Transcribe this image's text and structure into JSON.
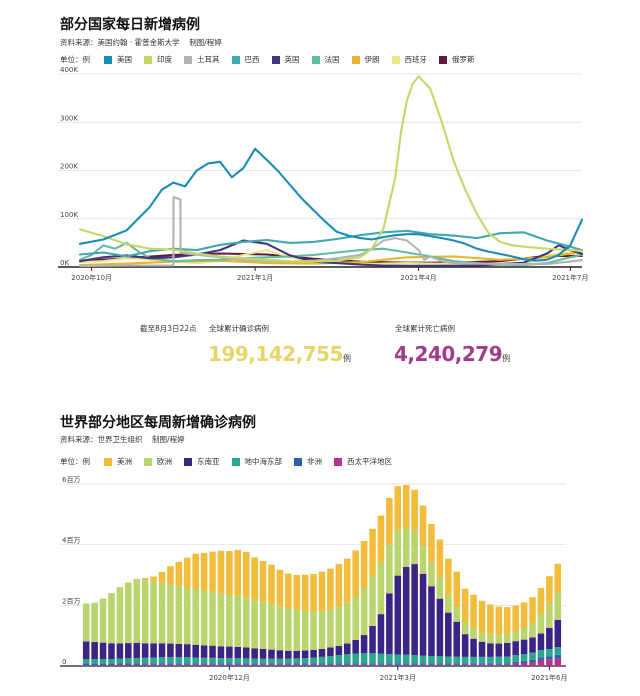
{
  "chart1": {
    "title": "部分国家每日新增病例",
    "source": "资料来源：美国约翰 · 霍普金斯大学",
    "credit": "制图/程婷",
    "legend_unit": "单位：例",
    "stats": {
      "cutoff": "截至8月3日22点",
      "cases_label": "全球累计确诊病例",
      "cases_value": "199,142,755",
      "deaths_label": "全球累计死亡病例",
      "deaths_value": "4,240,279",
      "unit": "例"
    }
  },
  "chart2": {
    "title": "世界部分地区每周新增确诊病例",
    "source": "资料来源：世界卫生组织",
    "credit": "制图/程婷",
    "legend_unit": "单位：例"
  },
  "chart_data": [
    {
      "type": "line",
      "title": "部分国家每日新增病例",
      "ylabel": "例",
      "ylim": [
        0,
        400000
      ],
      "yticks": [
        0,
        100000,
        200000,
        300000,
        400000
      ],
      "ytick_labels": [
        "0K",
        "100K",
        "200K",
        "300K",
        "400K"
      ],
      "xlim": [
        0,
        43
      ],
      "xticks": [
        1,
        15,
        29,
        42
      ],
      "xtick_labels": [
        "2020年10月",
        "2021年1月",
        "2021年4月",
        "2021年7月"
      ],
      "series": [
        {
          "name": "美国",
          "color": "#1a8cb5",
          "x": [
            0,
            2,
            4,
            6,
            7,
            8,
            9,
            10,
            11,
            12,
            13,
            14,
            15,
            16,
            17,
            18,
            19,
            20,
            21,
            22,
            23,
            24,
            25,
            26,
            27,
            28,
            29,
            30,
            31,
            32,
            33,
            34,
            35,
            36,
            37,
            38,
            39,
            40,
            41,
            42,
            43
          ],
          "values": [
            48000,
            57000,
            76000,
            125000,
            160000,
            175000,
            167000,
            200000,
            215000,
            218000,
            186000,
            205000,
            245000,
            222000,
            198000,
            170000,
            142000,
            118000,
            94000,
            73000,
            65000,
            60000,
            57000,
            62000,
            66000,
            68000,
            68000,
            64000,
            60000,
            55000,
            48000,
            38000,
            32000,
            27000,
            22000,
            16000,
            13000,
            15000,
            25000,
            45000,
            98000
          ]
        },
        {
          "name": "印度",
          "color": "#c3d86b",
          "x": [
            0,
            2,
            4,
            6,
            8,
            10,
            12,
            14,
            16,
            18,
            20,
            22,
            24,
            25,
            26,
            27,
            27.5,
            28,
            28.5,
            29,
            30,
            31,
            32,
            33,
            34,
            35,
            36,
            37,
            38,
            39,
            40,
            42,
            43
          ],
          "values": [
            78000,
            64000,
            47000,
            38000,
            36000,
            28000,
            22000,
            18000,
            15000,
            12000,
            11000,
            13000,
            20000,
            38000,
            80000,
            185000,
            280000,
            345000,
            380000,
            395000,
            370000,
            300000,
            220000,
            160000,
            110000,
            70000,
            52000,
            45000,
            42000,
            40000,
            38000,
            35000,
            33000
          ]
        },
        {
          "name": "土耳其",
          "color": "#b3b3b3",
          "x": [
            0,
            4,
            7,
            8,
            8.01,
            8.6,
            8.61,
            9,
            12,
            14,
            18,
            20,
            22,
            24,
            25,
            26,
            27,
            28,
            29,
            29.5,
            30,
            31,
            32,
            36,
            40,
            43
          ],
          "values": [
            2000,
            3000,
            3000,
            3000,
            145000,
            140000,
            30000,
            28000,
            20000,
            14000,
            11000,
            13000,
            18000,
            25000,
            38000,
            55000,
            60000,
            55000,
            35000,
            15000,
            22000,
            12000,
            8000,
            6000,
            6000,
            14000
          ]
        },
        {
          "name": "巴西",
          "color": "#41a8b2",
          "x": [
            0,
            2,
            4,
            6,
            8,
            10,
            12,
            14,
            16,
            18,
            20,
            22,
            24,
            26,
            28,
            30,
            32,
            34,
            36,
            38,
            40,
            42,
            43
          ],
          "values": [
            26000,
            30000,
            22000,
            33000,
            38000,
            35000,
            46000,
            52000,
            56000,
            50000,
            52000,
            58000,
            66000,
            72000,
            75000,
            68000,
            65000,
            60000,
            70000,
            72000,
            55000,
            42000,
            35000
          ]
        },
        {
          "name": "英国",
          "color": "#42377e",
          "x": [
            0,
            2,
            4,
            6,
            8,
            10,
            12,
            14,
            16,
            18,
            20,
            22,
            24,
            26,
            28,
            30,
            32,
            34,
            36,
            38,
            40,
            41,
            42,
            43
          ],
          "values": [
            12000,
            20000,
            24000,
            18000,
            20000,
            26000,
            35000,
            55000,
            48000,
            24000,
            11000,
            8000,
            5000,
            3000,
            2500,
            2500,
            2500,
            3000,
            6000,
            9000,
            28000,
            45000,
            35000,
            27000
          ]
        },
        {
          "name": "法国",
          "color": "#63bc9e",
          "x": [
            0,
            1,
            2,
            3,
            4,
            5,
            6,
            8,
            10,
            12,
            14,
            16,
            18,
            20,
            22,
            24,
            26,
            28,
            30,
            32,
            34,
            36,
            38,
            40,
            42,
            43
          ],
          "values": [
            15000,
            25000,
            45000,
            38000,
            50000,
            32000,
            18000,
            12000,
            14000,
            15000,
            18000,
            20000,
            22000,
            25000,
            30000,
            35000,
            38000,
            30000,
            22000,
            12000,
            8000,
            5000,
            4000,
            8000,
            20000,
            25000
          ]
        },
        {
          "name": "伊朗",
          "color": "#e7b731",
          "x": [
            0,
            4,
            8,
            12,
            16,
            20,
            24,
            28,
            32,
            36,
            40,
            43
          ],
          "values": [
            4000,
            7000,
            11000,
            13000,
            8000,
            7000,
            10000,
            20000,
            22000,
            15000,
            20000,
            32000
          ]
        },
        {
          "name": "西班牙",
          "color": "#ece78e",
          "x": [
            0,
            2,
            4,
            6,
            8,
            10,
            12,
            14,
            16,
            18,
            20,
            22,
            24,
            26,
            28,
            30,
            32,
            34,
            36,
            38,
            40,
            42,
            43
          ],
          "values": [
            10000,
            12000,
            18000,
            15000,
            12000,
            8000,
            12000,
            25000,
            35000,
            20000,
            10000,
            8000,
            6000,
            7000,
            8000,
            7000,
            6000,
            5000,
            4000,
            5000,
            25000,
            30000,
            25000
          ]
        },
        {
          "name": "俄罗斯",
          "color": "#5c1c3a",
          "x": [
            0,
            4,
            8,
            12,
            16,
            20,
            24,
            28,
            32,
            36,
            40,
            43
          ],
          "values": [
            12000,
            18000,
            25000,
            28000,
            26000,
            17000,
            11000,
            9000,
            9000,
            12000,
            23000,
            23000
          ]
        }
      ]
    },
    {
      "type": "bar",
      "stacked": true,
      "title": "世界部分地区每周新增确诊病例",
      "ylabel": "例",
      "ylim": [
        0,
        6000000
      ],
      "yticks": [
        0,
        2000000,
        4000000,
        6000000
      ],
      "ytick_labels": [
        "0",
        "2百万",
        "4百万",
        "6百万"
      ],
      "xtick_labels": [
        {
          "index": 17,
          "label": "2020年12月"
        },
        {
          "index": 37,
          "label": "2021年3月"
        },
        {
          "index": 55,
          "label": "2021年6月"
        }
      ],
      "categories": [
        "1",
        "2",
        "3",
        "4",
        "5",
        "6",
        "7",
        "8",
        "9",
        "10",
        "11",
        "12",
        "13",
        "14",
        "15",
        "16",
        "17",
        "18",
        "19",
        "20",
        "21",
        "22",
        "23",
        "24",
        "25",
        "26",
        "27",
        "28",
        "29",
        "30",
        "31",
        "32",
        "33",
        "34",
        "35",
        "36",
        "37",
        "38",
        "39",
        "40",
        "41",
        "42",
        "43",
        "44",
        "45",
        "46",
        "47",
        "48",
        "49",
        "50",
        "51",
        "52",
        "53",
        "54",
        "55",
        "56",
        "57"
      ],
      "series": [
        {
          "name": "西太平洋地区",
          "color": "#b2358e",
          "values": [
            30000,
            30000,
            30000,
            30000,
            35000,
            35000,
            35000,
            40000,
            40000,
            40000,
            40000,
            40000,
            40000,
            40000,
            40000,
            40000,
            40000,
            40000,
            40000,
            40000,
            40000,
            40000,
            40000,
            40000,
            40000,
            40000,
            40000,
            40000,
            40000,
            40000,
            40000,
            40000,
            40000,
            40000,
            40000,
            40000,
            40000,
            40000,
            40000,
            40000,
            40000,
            40000,
            40000,
            40000,
            40000,
            40000,
            40000,
            40000,
            40000,
            40000,
            40000,
            80000,
            100000,
            130000,
            200000,
            220000,
            250000
          ]
        },
        {
          "name": "非洲",
          "color": "#2a62a8",
          "values": [
            50000,
            50000,
            50000,
            50000,
            50000,
            50000,
            50000,
            50000,
            50000,
            50000,
            50000,
            50000,
            50000,
            50000,
            50000,
            50000,
            50000,
            50000,
            50000,
            50000,
            50000,
            50000,
            50000,
            50000,
            50000,
            50000,
            50000,
            50000,
            50000,
            50000,
            50000,
            50000,
            50000,
            50000,
            50000,
            50000,
            50000,
            50000,
            50000,
            50000,
            50000,
            50000,
            50000,
            50000,
            50000,
            50000,
            50000,
            50000,
            50000,
            50000,
            50000,
            60000,
            70000,
            80000,
            90000,
            100000,
            120000
          ]
        },
        {
          "name": "地中海东部",
          "color": "#2ba690",
          "values": [
            150000,
            150000,
            150000,
            150000,
            160000,
            170000,
            180000,
            180000,
            190000,
            200000,
            200000,
            200000,
            200000,
            190000,
            180000,
            180000,
            170000,
            170000,
            170000,
            160000,
            150000,
            150000,
            150000,
            150000,
            150000,
            160000,
            170000,
            190000,
            210000,
            240000,
            270000,
            300000,
            320000,
            330000,
            330000,
            320000,
            300000,
            290000,
            280000,
            270000,
            250000,
            240000,
            230000,
            220000,
            220000,
            210000,
            210000,
            210000,
            210000,
            220000,
            220000,
            220000,
            220000,
            230000,
            230000,
            240000,
            250000
          ]
        },
        {
          "name": "东南亚",
          "color": "#3a2587",
          "values": [
            580000,
            560000,
            540000,
            520000,
            500000,
            500000,
            500000,
            480000,
            470000,
            460000,
            450000,
            440000,
            430000,
            420000,
            410000,
            400000,
            390000,
            380000,
            370000,
            360000,
            340000,
            320000,
            300000,
            280000,
            260000,
            250000,
            250000,
            250000,
            260000,
            280000,
            300000,
            350000,
            450000,
            600000,
            900000,
            1300000,
            2000000,
            2600000,
            2900000,
            3000000,
            2700000,
            2300000,
            1900000,
            1450000,
            1150000,
            750000,
            600000,
            500000,
            450000,
            430000,
            450000,
            460000,
            480000,
            500000,
            550000,
            700000,
            900000
          ]
        },
        {
          "name": "欧洲",
          "color": "#bad46e",
          "values": [
            1250000,
            1300000,
            1450000,
            1650000,
            1850000,
            2000000,
            2100000,
            2100000,
            2050000,
            2000000,
            1950000,
            1900000,
            1850000,
            1850000,
            1800000,
            1800000,
            1750000,
            1700000,
            1700000,
            1650000,
            1600000,
            1550000,
            1500000,
            1450000,
            1400000,
            1350000,
            1300000,
            1250000,
            1250000,
            1250000,
            1300000,
            1350000,
            1450000,
            1550000,
            1650000,
            1700000,
            1650000,
            1500000,
            1300000,
            1100000,
            950000,
            800000,
            700000,
            580000,
            500000,
            400000,
            350000,
            300000,
            280000,
            270000,
            280000,
            320000,
            380000,
            480000,
            650000,
            800000,
            900000
          ]
        },
        {
          "name": "美洲",
          "color": "#f3bd3c",
          "values": [
            0,
            0,
            0,
            0,
            0,
            0,
            0,
            50000,
            150000,
            350000,
            600000,
            800000,
            1000000,
            1150000,
            1250000,
            1300000,
            1400000,
            1450000,
            1500000,
            1500000,
            1400000,
            1350000,
            1300000,
            1200000,
            1150000,
            1150000,
            1200000,
            1250000,
            1300000,
            1350000,
            1400000,
            1450000,
            1500000,
            1550000,
            1550000,
            1550000,
            1500000,
            1450000,
            1400000,
            1350000,
            1300000,
            1250000,
            1250000,
            1200000,
            1150000,
            1100000,
            1100000,
            1050000,
            1000000,
            950000,
            900000,
            850000,
            850000,
            850000,
            850000,
            900000,
            950000
          ]
        }
      ]
    }
  ]
}
